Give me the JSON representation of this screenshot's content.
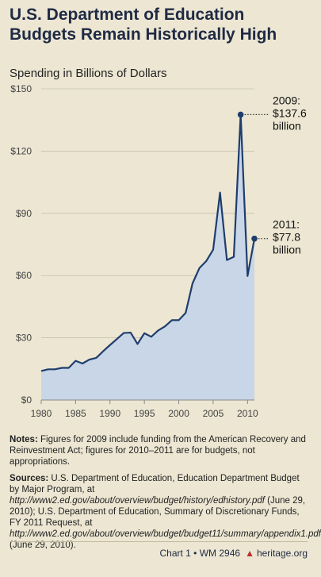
{
  "title": "U.S. Department of Education Budgets Remain Historically High",
  "subtitle": "Spending in Billions of Dollars",
  "notes": {
    "label": "Notes:",
    "text": "Figures for 2009 include funding from the American Recovery and Reinvestment Act; figures for 2010–2011 are for budgets, not appropriations."
  },
  "sources": {
    "label": "Sources:",
    "part1": "U.S. Department of Education, Education Department Budget by Major Program, at ",
    "url1": "http://www2.ed.gov/about/overview/budget/history/edhistory.pdf",
    "part2": " (June 29, 2010); U.S. Department of Education, Summary of Discretionary Funds, FY 2011 Request, at ",
    "url2": "http://www2.ed.gov/about/overview/budget/budget11/summary/appendix1.pdf",
    "part3": " (June 29, 2010)."
  },
  "footer": {
    "chart": "Chart 1 • WM 2946",
    "site": "heritage.org"
  },
  "colors": {
    "line": "#1f3d6d",
    "fill": "#c9d6e8",
    "grid": "#b8b3a0",
    "background": "#ece6d2"
  },
  "chart_data": {
    "type": "area",
    "x": [
      1980,
      1981,
      1982,
      1983,
      1984,
      1985,
      1986,
      1987,
      1988,
      1989,
      1990,
      1991,
      1992,
      1993,
      1994,
      1995,
      1996,
      1997,
      1998,
      1999,
      2000,
      2001,
      2002,
      2003,
      2004,
      2005,
      2006,
      2007,
      2008,
      2009,
      2010,
      2011
    ],
    "values": [
      14.0,
      14.8,
      14.8,
      15.5,
      15.5,
      18.9,
      17.6,
      19.5,
      20.3,
      23.5,
      26.5,
      29.4,
      32.3,
      32.5,
      27.0,
      32.2,
      30.5,
      33.5,
      35.5,
      38.5,
      38.5,
      42.0,
      56.2,
      63.6,
      67.0,
      72.5,
      100.0,
      67.5,
      69.0,
      137.6,
      59.8,
      77.8
    ],
    "ylim": [
      0,
      150
    ],
    "yticks": [
      "$0",
      "$30",
      "$60",
      "$90",
      "$120",
      "$150"
    ],
    "ytick_values": [
      0,
      30,
      60,
      90,
      120,
      150
    ],
    "xticks": [
      "1980",
      "1985",
      "1990",
      "1995",
      "2000",
      "2005",
      "2010"
    ],
    "xtick_values": [
      1980,
      1985,
      1990,
      1995,
      2000,
      2005,
      2010
    ],
    "grid": true,
    "annotations": [
      {
        "x": 2009,
        "lines": [
          "2009:",
          "$137.6",
          "billion"
        ]
      },
      {
        "x": 2011,
        "lines": [
          "2011:",
          "$77.8",
          "billion"
        ]
      }
    ]
  }
}
